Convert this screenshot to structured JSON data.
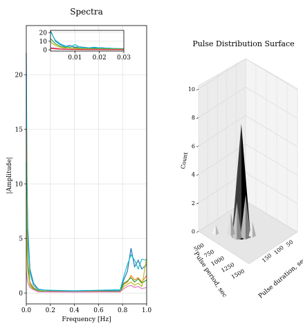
{
  "chart_data": [
    {
      "type": "line",
      "title": "Spectra",
      "xlabel": "Frequency [Hz]",
      "ylabel": "|Amplitude|",
      "xlim": [
        0,
        1.0
      ],
      "ylim": [
        -1,
        24.5
      ],
      "xticks": [
        "0.0",
        "0.2",
        "0.4",
        "0.6",
        "0.8",
        "1.0"
      ],
      "yticks": [
        "0",
        "5",
        "10",
        "15",
        "20"
      ],
      "grid": true,
      "series": [
        {
          "color": "#1f77b4",
          "values": [
            [
              0.0,
              22
            ],
            [
              0.005,
              11
            ],
            [
              0.012,
              6
            ],
            [
              0.03,
              2.2
            ],
            [
              0.06,
              0.9
            ],
            [
              0.1,
              0.35
            ],
            [
              0.2,
              0.2
            ],
            [
              0.4,
              0.15
            ],
            [
              0.6,
              0.2
            ],
            [
              0.78,
              0.2
            ],
            [
              0.81,
              1.2
            ],
            [
              0.84,
              2.0
            ],
            [
              0.87,
              4.1
            ],
            [
              0.9,
              2.4
            ],
            [
              0.93,
              3.0
            ],
            [
              0.96,
              2.2
            ],
            [
              1.0,
              2.6
            ]
          ]
        },
        {
          "color": "#17becf",
          "values": [
            [
              0.0,
              20
            ],
            [
              0.005,
              10
            ],
            [
              0.012,
              5
            ],
            [
              0.03,
              1.8
            ],
            [
              0.06,
              0.7
            ],
            [
              0.1,
              0.3
            ],
            [
              0.2,
              0.25
            ],
            [
              0.4,
              0.2
            ],
            [
              0.6,
              0.25
            ],
            [
              0.78,
              0.3
            ],
            [
              0.81,
              1.5
            ],
            [
              0.84,
              2.6
            ],
            [
              0.87,
              3.5
            ],
            [
              0.9,
              3.0
            ],
            [
              0.93,
              2.2
            ],
            [
              0.96,
              3.1
            ],
            [
              1.0,
              3.0
            ]
          ]
        },
        {
          "color": "#ff7f0e",
          "values": [
            [
              0.0,
              15
            ],
            [
              0.005,
              6
            ],
            [
              0.012,
              3
            ],
            [
              0.03,
              1.0
            ],
            [
              0.06,
              0.5
            ],
            [
              0.1,
              0.2
            ],
            [
              0.2,
              0.15
            ],
            [
              0.4,
              0.1
            ],
            [
              0.6,
              0.15
            ],
            [
              0.78,
              0.15
            ],
            [
              0.81,
              0.8
            ],
            [
              0.84,
              1.0
            ],
            [
              0.87,
              1.6
            ],
            [
              0.9,
              1.2
            ],
            [
              0.93,
              1.4
            ],
            [
              0.96,
              1.0
            ],
            [
              1.0,
              1.6
            ]
          ]
        },
        {
          "color": "#2ca02c",
          "values": [
            [
              0.0,
              12
            ],
            [
              0.005,
              5
            ],
            [
              0.012,
              2.5
            ],
            [
              0.03,
              0.8
            ],
            [
              0.06,
              0.4
            ],
            [
              0.1,
              0.2
            ],
            [
              0.2,
              0.12
            ],
            [
              0.4,
              0.1
            ],
            [
              0.6,
              0.12
            ],
            [
              0.78,
              0.15
            ],
            [
              0.81,
              0.9
            ],
            [
              0.84,
              1.1
            ],
            [
              0.87,
              1.4
            ],
            [
              0.9,
              1.0
            ],
            [
              0.93,
              1.3
            ],
            [
              0.96,
              0.9
            ],
            [
              1.0,
              1.2
            ]
          ]
        },
        {
          "color": "#bcbd22",
          "values": [
            [
              0.0,
              9
            ],
            [
              0.005,
              4
            ],
            [
              0.012,
              2
            ],
            [
              0.03,
              0.7
            ],
            [
              0.06,
              0.3
            ],
            [
              0.1,
              0.15
            ],
            [
              0.2,
              0.1
            ],
            [
              0.4,
              0.1
            ],
            [
              0.6,
              0.1
            ],
            [
              0.78,
              0.1
            ],
            [
              0.81,
              0.6
            ],
            [
              0.84,
              0.8
            ],
            [
              0.87,
              1.0
            ],
            [
              0.9,
              0.7
            ],
            [
              0.93,
              0.9
            ],
            [
              0.96,
              0.6
            ],
            [
              1.0,
              3.2
            ]
          ]
        },
        {
          "color": "#e377c2",
          "values": [
            [
              0.0,
              2
            ],
            [
              0.005,
              1.5
            ],
            [
              0.012,
              1.0
            ],
            [
              0.03,
              0.5
            ],
            [
              0.06,
              0.3
            ],
            [
              0.1,
              0.1
            ],
            [
              0.2,
              0.1
            ],
            [
              0.4,
              0.08
            ],
            [
              0.6,
              0.1
            ],
            [
              0.78,
              0.1
            ],
            [
              0.81,
              0.4
            ],
            [
              0.84,
              0.6
            ],
            [
              0.87,
              0.7
            ],
            [
              0.9,
              0.5
            ],
            [
              0.93,
              0.6
            ],
            [
              0.96,
              0.4
            ],
            [
              1.0,
              0.5
            ]
          ]
        }
      ]
    },
    {
      "type": "line",
      "inset_of": "Spectra",
      "xlim": [
        0,
        0.03
      ],
      "ylim": [
        -1.5,
        22.5
      ],
      "xticks": [
        "0.01",
        "0.02",
        "0.03"
      ],
      "yticks": [
        "0",
        "10",
        "20"
      ],
      "grid": true,
      "series": [
        {
          "color": "#1f77b4",
          "values": [
            [
              0.0,
              22
            ],
            [
              0.002,
              10
            ],
            [
              0.004,
              6
            ],
            [
              0.006,
              4
            ],
            [
              0.008,
              5
            ],
            [
              0.01,
              3
            ],
            [
              0.012,
              3.5
            ],
            [
              0.015,
              2.5
            ],
            [
              0.018,
              2
            ],
            [
              0.021,
              2.4
            ],
            [
              0.024,
              1.6
            ],
            [
              0.027,
              1.5
            ],
            [
              0.03,
              1.2
            ]
          ]
        },
        {
          "color": "#17becf",
          "values": [
            [
              0.0,
              21
            ],
            [
              0.002,
              11
            ],
            [
              0.004,
              7
            ],
            [
              0.006,
              4.5
            ],
            [
              0.008,
              3
            ],
            [
              0.01,
              6
            ],
            [
              0.012,
              3
            ],
            [
              0.015,
              2.2
            ],
            [
              0.018,
              3
            ],
            [
              0.021,
              1.8
            ],
            [
              0.024,
              2
            ],
            [
              0.027,
              1.3
            ],
            [
              0.03,
              1.4
            ]
          ]
        },
        {
          "color": "#2ca02c",
          "values": [
            [
              0.0,
              13
            ],
            [
              0.002,
              7
            ],
            [
              0.004,
              4
            ],
            [
              0.006,
              3
            ],
            [
              0.008,
              2
            ],
            [
              0.01,
              2.5
            ],
            [
              0.012,
              1.8
            ],
            [
              0.015,
              1.5
            ],
            [
              0.018,
              1.2
            ],
            [
              0.021,
              1.2
            ],
            [
              0.024,
              1
            ],
            [
              0.027,
              0.9
            ],
            [
              0.03,
              0.8
            ]
          ]
        },
        {
          "color": "#bcbd22",
          "values": [
            [
              0.0,
              9
            ],
            [
              0.002,
              5
            ],
            [
              0.004,
              3
            ],
            [
              0.006,
              2
            ],
            [
              0.008,
              2.4
            ],
            [
              0.01,
              1.6
            ],
            [
              0.012,
              1.2
            ],
            [
              0.015,
              1
            ],
            [
              0.018,
              0.9
            ],
            [
              0.021,
              0.8
            ],
            [
              0.024,
              0.8
            ],
            [
              0.027,
              0.7
            ],
            [
              0.03,
              0.6
            ]
          ]
        },
        {
          "color": "#e377c2",
          "values": [
            [
              0.0,
              2.5
            ],
            [
              0.002,
              2
            ],
            [
              0.004,
              1.2
            ],
            [
              0.006,
              1
            ],
            [
              0.008,
              0.8
            ],
            [
              0.01,
              0.6
            ],
            [
              0.012,
              0.5
            ],
            [
              0.015,
              0.5
            ],
            [
              0.018,
              0.4
            ],
            [
              0.021,
              0.4
            ],
            [
              0.024,
              0.3
            ],
            [
              0.027,
              0.3
            ],
            [
              0.03,
              0.3
            ]
          ]
        },
        {
          "color": "#d62728",
          "values": [
            [
              0.0,
              1.5
            ],
            [
              0.002,
              1.2
            ],
            [
              0.004,
              0.8
            ],
            [
              0.006,
              0.6
            ],
            [
              0.008,
              0.5
            ],
            [
              0.01,
              0.4
            ],
            [
              0.012,
              0.4
            ],
            [
              0.015,
              0.3
            ],
            [
              0.018,
              0.3
            ],
            [
              0.021,
              0.3
            ],
            [
              0.024,
              0.2
            ],
            [
              0.027,
              0.2
            ],
            [
              0.03,
              0.2
            ]
          ]
        }
      ]
    },
    {
      "type": "surface",
      "title": "Pulse Distribution Surface",
      "xlabel": "Pulse period, sec",
      "ylabel": "Pulse duration, sec",
      "zlabel": "Count",
      "xticks": [
        "500",
        "750",
        "1000",
        "1250",
        "1500"
      ],
      "yticks": [
        "50",
        "100",
        "150"
      ],
      "zticks": [
        "0",
        "2",
        "4",
        "6",
        "8",
        "10"
      ],
      "xlim": [
        250,
        1500
      ],
      "ylim": [
        0,
        200
      ],
      "zlim": [
        0,
        10
      ],
      "peaks": [
        {
          "x": 900,
          "y": 70,
          "z": 8.0
        },
        {
          "x": 950,
          "y": 80,
          "z": 3.0
        },
        {
          "x": 850,
          "y": 60,
          "z": 2.5
        },
        {
          "x": 700,
          "y": 60,
          "z": 1.5
        },
        {
          "x": 1000,
          "y": 100,
          "z": 1.0
        },
        {
          "x": 500,
          "y": 30,
          "z": 0.6
        }
      ]
    }
  ]
}
